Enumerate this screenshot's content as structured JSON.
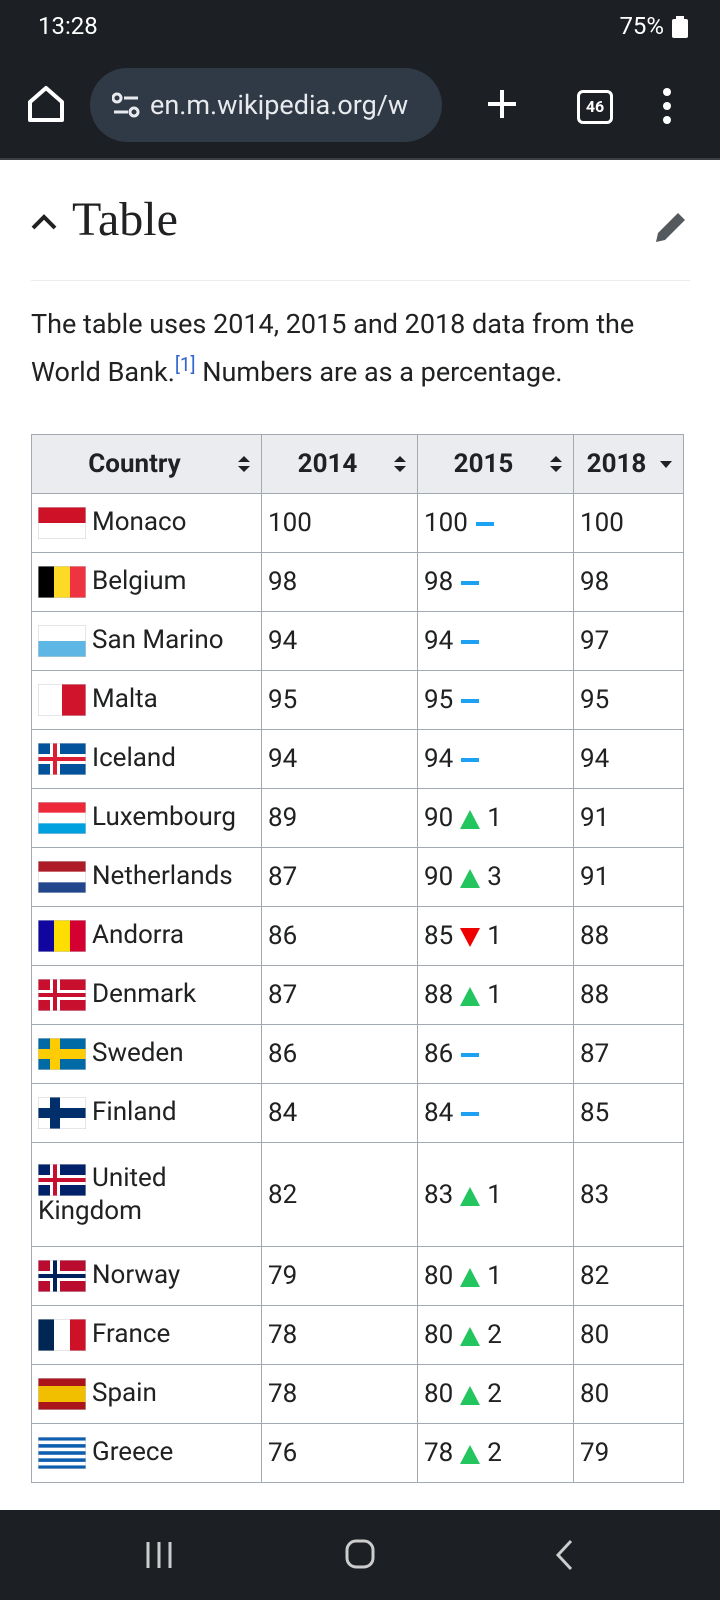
{
  "status_bar": {
    "time": "13:28",
    "battery": "75%"
  },
  "browser": {
    "url": "en.m.wikipedia.org/w",
    "tab_count": "46"
  },
  "section": {
    "heading": "Table",
    "intro": "The table uses 2014, 2015 and 2018 data from the World Bank.",
    "citation": "[1]",
    "intro_after": " Numbers are as a percentage."
  },
  "table": {
    "headers": [
      "Country",
      "2014",
      "2015",
      "2018"
    ],
    "rows": [
      {
        "country": "Monaco",
        "y2014": "100",
        "y2015": "100",
        "trend": "same",
        "y2018": "100"
      },
      {
        "country": "Belgium",
        "y2014": "98",
        "y2015": "98",
        "trend": "same",
        "y2018": "98"
      },
      {
        "country": "San Marino",
        "y2014": "94",
        "y2015": "94",
        "trend": "same",
        "y2018": "97"
      },
      {
        "country": "Malta",
        "y2014": "95",
        "y2015": "95",
        "trend": "same",
        "y2018": "95"
      },
      {
        "country": "Iceland",
        "y2014": "94",
        "y2015": "94",
        "trend": "same",
        "y2018": "94"
      },
      {
        "country": "Luxembourg",
        "y2014": "89",
        "y2015": "90",
        "trend": "up",
        "change": "1",
        "y2018": "91"
      },
      {
        "country": "Netherlands",
        "y2014": "87",
        "y2015": "90",
        "trend": "up",
        "change": "3",
        "y2018": "91"
      },
      {
        "country": "Andorra",
        "y2014": "86",
        "y2015": "85",
        "trend": "down",
        "change": "1",
        "y2018": "88"
      },
      {
        "country": "Denmark",
        "y2014": "87",
        "y2015": "88",
        "trend": "up",
        "change": "1",
        "y2018": "88"
      },
      {
        "country": "Sweden",
        "y2014": "86",
        "y2015": "86",
        "trend": "same",
        "y2018": "87"
      },
      {
        "country": "Finland",
        "y2014": "84",
        "y2015": "84",
        "trend": "same",
        "y2018": "85"
      },
      {
        "country": "United Kingdom",
        "y2014": "82",
        "y2015": "83",
        "trend": "up",
        "change": "1",
        "y2018": "83"
      },
      {
        "country": "Norway",
        "y2014": "79",
        "y2015": "80",
        "trend": "up",
        "change": "1",
        "y2018": "82"
      },
      {
        "country": "France",
        "y2014": "78",
        "y2015": "80",
        "trend": "up",
        "change": "2",
        "y2018": "80"
      },
      {
        "country": "Spain",
        "y2014": "78",
        "y2015": "80",
        "trend": "up",
        "change": "2",
        "y2018": "80"
      },
      {
        "country": "Greece",
        "y2014": "76",
        "y2015": "78",
        "trend": "up",
        "change": "2",
        "y2018": "79"
      }
    ]
  }
}
